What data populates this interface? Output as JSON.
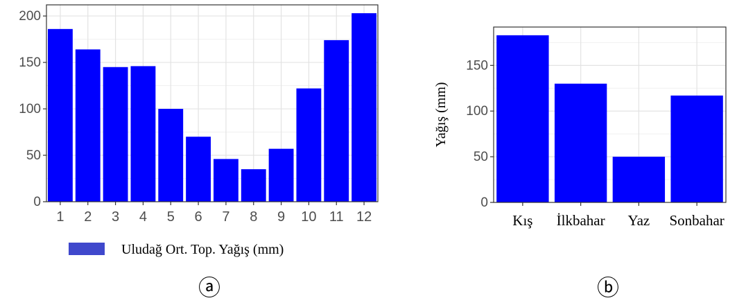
{
  "chart_data": [
    {
      "type": "bar",
      "panel_label": "ⓐ",
      "categories": [
        "1",
        "2",
        "3",
        "4",
        "5",
        "6",
        "7",
        "8",
        "9",
        "10",
        "11",
        "12"
      ],
      "series": [
        {
          "name": "Uludağ Ort. Top. Yağış (mm)",
          "values": [
            186,
            164,
            145,
            146,
            100,
            70,
            46,
            35,
            57,
            122,
            174,
            203
          ]
        }
      ],
      "yticks": [
        0,
        50,
        100,
        150,
        200
      ],
      "ylim": [
        0,
        212
      ],
      "grid": true,
      "legend_position": "bottom",
      "bar_color": "#0000ff",
      "legend_color": "#3f48cc"
    },
    {
      "type": "bar",
      "panel_label": "ⓑ",
      "categories": [
        "Kış",
        "İlkbahar",
        "Yaz",
        "Sonbahar"
      ],
      "values": [
        183,
        130,
        50,
        117
      ],
      "ylabel": "Yağış (mm)",
      "yticks": [
        0,
        50,
        100,
        150
      ],
      "ylim": [
        0,
        192
      ],
      "grid": true,
      "bar_color": "#0000ff"
    }
  ]
}
